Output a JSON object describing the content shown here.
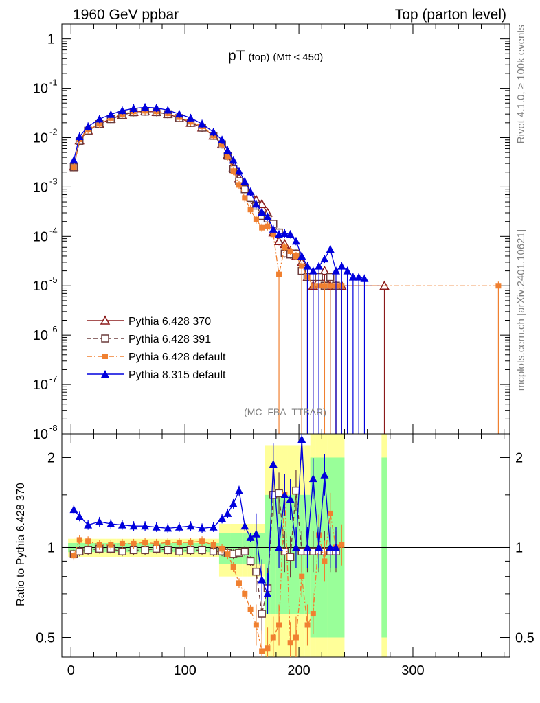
{
  "header": {
    "left": "1960 GeV ppbar",
    "right": "Top (parton level)"
  },
  "title": {
    "main": "pT",
    "sub1": "(top)",
    "sub2": "(Mtt < 450)"
  },
  "watermark": "(MC_FBA_TTBAR)",
  "side_labels": {
    "rivet": "Rivet 4.1.0, ≥ 100k events",
    "mcplots": "mcplots.cern.ch [arXiv:2401.10621]"
  },
  "ratio_ylabel": "Ratio to Pythia 6.428 370",
  "colors": {
    "p370": "#8b1a1a",
    "p391": "#6b3b3b",
    "pdef": "#f08030",
    "p8": "#0000dd",
    "band_yellow": "#ffff99",
    "band_green": "#99ff99"
  },
  "chart_data": [
    {
      "type": "line",
      "title": "pT (top) (Mtt < 450)",
      "xlabel": "",
      "ylabel": "",
      "yscale": "log",
      "xlim": [
        -8,
        385
      ],
      "ylim": [
        1e-08,
        2
      ],
      "ytick_labels": [
        "1",
        "10^-1",
        "10^-2",
        "10^-3",
        "10^-4",
        "10^-5",
        "10^-6",
        "10^-7",
        "10^-8"
      ],
      "legend": {
        "position": "lower-left",
        "entries": [
          "Pythia 6.428 370",
          "Pythia 6.428 391",
          "Pythia 6.428 default",
          "Pythia 8.315 default"
        ]
      },
      "series": [
        {
          "name": "Pythia 6.428 370",
          "style": "solid",
          "marker": "open-triangle",
          "x": [
            2.5,
            7.5,
            15,
            25,
            35,
            45,
            55,
            65,
            75,
            85,
            95,
            105,
            115,
            125,
            132.5,
            137.5,
            142.5,
            147.5,
            152.5,
            157.5,
            162.5,
            167.5,
            172.5,
            177.5,
            182.5,
            187.5,
            192.5,
            197.5,
            202.5,
            207.5,
            212.5,
            217.5,
            222.5,
            227.5,
            232.5,
            237.5,
            275
          ],
          "y": [
            0.0026,
            0.0088,
            0.014,
            0.019,
            0.024,
            0.029,
            0.033,
            0.034,
            0.033,
            0.03,
            0.025,
            0.02,
            0.016,
            0.011,
            0.0075,
            0.0045,
            0.0025,
            0.0015,
            0.0011,
            0.00075,
            0.00055,
            0.00045,
            0.0003,
            0.00012,
            8e-05,
            7e-05,
            5e-05,
            4e-05,
            3e-05,
            1.5e-05,
            1e-05,
            1.5e-05,
            2e-05,
            1e-05,
            1e-05,
            1e-05,
            1e-05
          ]
        },
        {
          "name": "Pythia 6.428 391",
          "style": "dashed",
          "marker": "open-square",
          "x": [
            2.5,
            7.5,
            15,
            25,
            35,
            45,
            55,
            65,
            75,
            85,
            95,
            105,
            115,
            125,
            132.5,
            137.5,
            142.5,
            147.5,
            152.5,
            157.5,
            162.5,
            167.5,
            172.5,
            177.5,
            182.5,
            187.5,
            192.5,
            197.5,
            202.5,
            207.5,
            212.5,
            217.5,
            222.5,
            227.5,
            232.5
          ],
          "y": [
            0.0025,
            0.0086,
            0.0138,
            0.0188,
            0.0237,
            0.0287,
            0.0326,
            0.0336,
            0.0328,
            0.0298,
            0.0249,
            0.0199,
            0.0159,
            0.0109,
            0.0073,
            0.0043,
            0.0023,
            0.0013,
            0.0009,
            0.0006,
            0.00042,
            0.00026,
            0.00023,
            0.00018,
            0.00012,
            4.5e-05,
            4.3e-05,
            4.5e-05,
            2e-05,
            1.5e-05,
            1.5e-05,
            1.5e-05,
            1e-05,
            1.5e-05,
            1e-05
          ]
        },
        {
          "name": "Pythia 6.428 default",
          "style": "dashdot",
          "marker": "filled-square",
          "x": [
            2.5,
            7.5,
            15,
            25,
            35,
            45,
            55,
            65,
            75,
            85,
            95,
            105,
            115,
            125,
            132.5,
            137.5,
            142.5,
            147.5,
            152.5,
            157.5,
            162.5,
            167.5,
            172.5,
            177.5,
            182.5,
            187.5,
            192.5,
            197.5,
            202.5,
            207.5,
            212.5,
            217.5,
            222.5,
            227.5,
            232.5,
            237.5,
            375
          ],
          "y": [
            0.0025,
            0.0092,
            0.0145,
            0.019,
            0.025,
            0.03,
            0.034,
            0.035,
            0.034,
            0.031,
            0.026,
            0.021,
            0.017,
            0.011,
            0.0074,
            0.0042,
            0.0021,
            0.0011,
            0.0006,
            0.00035,
            0.00022,
            0.00015,
            0.00016,
            0.00011,
            1.7e-05,
            6e-05,
            5e-05,
            4e-05,
            2.5e-05,
            1.5e-05,
            1e-05,
            1e-05,
            1e-05,
            1e-05,
            1e-05,
            1e-05,
            1e-05
          ]
        },
        {
          "name": "Pythia 8.315 default",
          "style": "solid",
          "marker": "filled-triangle",
          "x": [
            2.5,
            7.5,
            15,
            25,
            35,
            45,
            55,
            65,
            75,
            85,
            95,
            105,
            115,
            125,
            132.5,
            137.5,
            142.5,
            147.5,
            152.5,
            157.5,
            162.5,
            167.5,
            172.5,
            177.5,
            182.5,
            187.5,
            192.5,
            197.5,
            202.5,
            207.5,
            212.5,
            217.5,
            222.5,
            227.5,
            232.5,
            237.5,
            242.5,
            247.5,
            252.5,
            257.5
          ],
          "y": [
            0.0035,
            0.0105,
            0.0168,
            0.0238,
            0.0295,
            0.0352,
            0.039,
            0.041,
            0.04,
            0.036,
            0.03,
            0.025,
            0.019,
            0.013,
            0.009,
            0.0055,
            0.0035,
            0.0021,
            0.0013,
            0.0008,
            0.00045,
            0.00031,
            0.00025,
            0.00014,
            0.00011,
            0.000115,
            0.00011,
            8e-05,
            4e-05,
            2.5e-05,
            2e-05,
            2.5e-05,
            3.5e-05,
            5.5e-05,
            2e-05,
            2.5e-05,
            2e-05,
            1.5e-05,
            1.5e-05,
            1.4e-05
          ]
        }
      ]
    },
    {
      "type": "line",
      "title": "",
      "xlabel": "",
      "ylabel": "Ratio to Pythia 6.428 370",
      "xlim": [
        -8,
        385
      ],
      "ylim": [
        0.43,
        2.4
      ],
      "x_tick_labels": [
        "0",
        "100",
        "200",
        "300"
      ],
      "y_tick_labels": [
        "0.5",
        "1",
        "2"
      ],
      "series": [
        {
          "name": "Pythia 6.428 391",
          "x": [
            2.5,
            7.5,
            15,
            25,
            35,
            45,
            55,
            65,
            75,
            85,
            95,
            105,
            115,
            125,
            132.5,
            137.5,
            142.5,
            147.5,
            152.5,
            157.5,
            162.5,
            167.5,
            172.5,
            177.5,
            182.5,
            187.5,
            192.5,
            197.5,
            202.5,
            207.5,
            212.5,
            217.5,
            222.5,
            227.5,
            232.5
          ],
          "y": [
            0.95,
            0.97,
            0.98,
            0.99,
            0.99,
            0.97,
            0.98,
            0.98,
            0.99,
            0.98,
            0.97,
            0.98,
            0.98,
            0.97,
            0.97,
            0.96,
            0.95,
            0.96,
            0.97,
            0.9,
            0.83,
            0.6,
            0.73,
            1.5,
            1.52,
            0.97,
            0.93,
            1.55,
            0.97,
            0.97,
            0.97,
            0.97,
            0.97,
            0.97,
            0.97
          ]
        },
        {
          "name": "Pythia 6.428 default",
          "x": [
            2.5,
            7.5,
            15,
            25,
            35,
            45,
            55,
            65,
            75,
            85,
            95,
            105,
            115,
            125,
            132.5,
            137.5,
            142.5,
            147.5,
            152.5,
            157.5,
            162.5,
            167.5,
            172.5,
            177.5,
            182.5,
            187.5,
            192.5,
            197.5,
            202.5,
            207.5,
            212.5,
            217.5,
            222.5,
            227.5,
            232.5,
            237.5
          ],
          "y": [
            0.94,
            1.06,
            1.05,
            1.02,
            1.02,
            1.03,
            1.03,
            1.04,
            1.03,
            1.04,
            1.04,
            1.04,
            1.05,
            1.02,
            0.99,
            0.95,
            0.86,
            0.76,
            0.7,
            0.62,
            0.55,
            0.45,
            0.46,
            0.5,
            0.55,
            1.5,
            0.48,
            0.5,
            0.8,
            0.55,
            0.6,
            1.1,
            0.9,
            1.3,
            1.0,
            1.02
          ]
        },
        {
          "name": "Pythia 8.315 default",
          "x": [
            2.5,
            7.5,
            15,
            25,
            35,
            45,
            55,
            65,
            75,
            85,
            95,
            105,
            115,
            125,
            132.5,
            137.5,
            142.5,
            147.5,
            152.5,
            157.5,
            162.5,
            167.5,
            172.5,
            177.5,
            182.5,
            187.5,
            192.5,
            197.5,
            202.5,
            207.5,
            212.5,
            217.5,
            222.5,
            227.5,
            232.5
          ],
          "y": [
            1.34,
            1.27,
            1.19,
            1.22,
            1.2,
            1.19,
            1.18,
            1.18,
            1.17,
            1.16,
            1.17,
            1.18,
            1.16,
            1.17,
            1.25,
            1.3,
            1.4,
            1.55,
            1.18,
            1.08,
            1.11,
            0.78,
            0.7,
            1.9,
            1.0,
            1.5,
            1.45,
            1.0,
            2.3,
            1.0,
            1.7,
            1.0,
            1.75,
            1.0,
            1.0
          ]
        }
      ]
    }
  ]
}
